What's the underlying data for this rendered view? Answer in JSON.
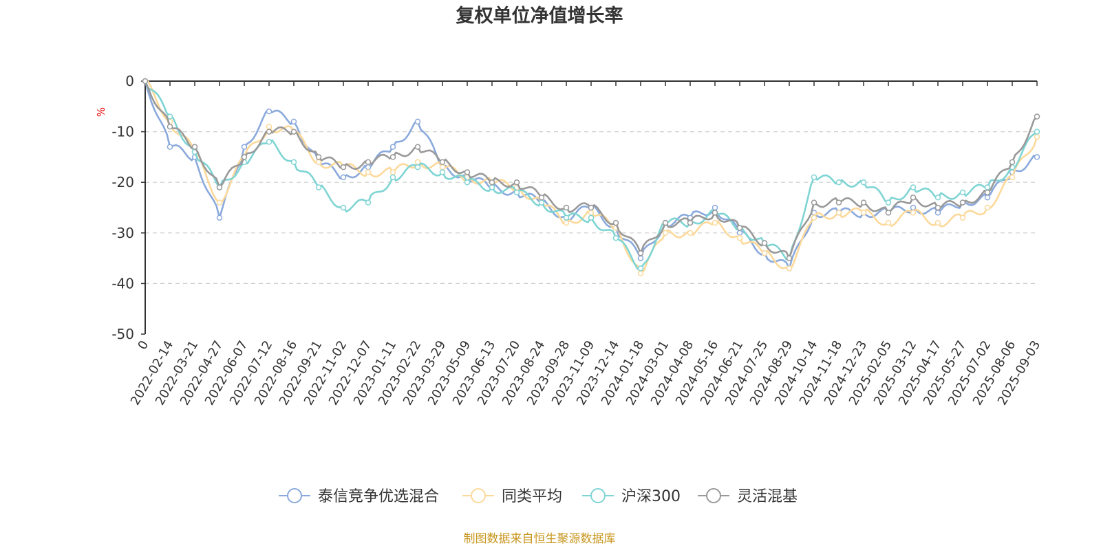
{
  "chart_data": {
    "type": "line",
    "title": "复权单位净值增长率",
    "ylabel": "%",
    "ylim": [
      -50,
      0
    ],
    "yticks": [
      "0",
      "-10",
      "-20",
      "-30",
      "-40",
      "-50"
    ],
    "grid": "horizontal dashed",
    "legend_position": "bottom",
    "x": [
      "0",
      "2022-02-14",
      "2022-03-21",
      "2022-04-27",
      "2022-06-07",
      "2022-07-12",
      "2022-08-16",
      "2022-09-21",
      "2022-11-02",
      "2022-12-07",
      "2023-01-11",
      "2023-02-22",
      "2023-03-29",
      "2023-05-09",
      "2023-06-13",
      "2023-07-20",
      "2023-08-24",
      "2023-09-28",
      "2023-11-09",
      "2023-12-14",
      "2024-01-18",
      "2024-03-01",
      "2024-04-08",
      "2024-05-16",
      "2024-06-21",
      "2024-07-25",
      "2024-08-29",
      "2024-10-14",
      "2024-11-18",
      "2024-12-23",
      "2025-02-05",
      "2025-03-12",
      "2025-04-17",
      "2025-05-27",
      "2025-07-02",
      "2025-08-06",
      "2025-09-03"
    ],
    "series": [
      {
        "name": "泰信竞争优选混合",
        "color": "#8aa9dc",
        "values": [
          0,
          -13,
          -15,
          -27,
          -13,
          -6,
          -8,
          -16,
          -19,
          -17,
          -13,
          -8,
          -17,
          -19,
          -21,
          -22,
          -24,
          -27,
          -25,
          -29,
          -35,
          -28,
          -27,
          -25,
          -30,
          -34,
          -37,
          -26,
          -26,
          -26,
          -26,
          -25,
          -26,
          -24,
          -23,
          -18,
          -15
        ]
      },
      {
        "name": "同类平均",
        "color": "#fcd99a",
        "values": [
          0,
          -8,
          -14,
          -24,
          -15,
          -9,
          -10,
          -16,
          -17,
          -18,
          -18,
          -16,
          -17,
          -19,
          -20,
          -21,
          -24,
          -28,
          -26,
          -29,
          -38,
          -30,
          -30,
          -28,
          -31,
          -34,
          -37,
          -27,
          -26,
          -26,
          -28,
          -26,
          -28,
          -27,
          -25,
          -19,
          -11
        ]
      },
      {
        "name": "沪深300",
        "color": "#7fd4d4",
        "values": [
          0,
          -7,
          -14,
          -21,
          -16,
          -12,
          -16,
          -21,
          -25,
          -24,
          -19,
          -17,
          -18,
          -20,
          -21,
          -22,
          -24,
          -27,
          -27,
          -31,
          -37,
          -28,
          -28,
          -26,
          -29,
          -32,
          -35,
          -19,
          -20,
          -20,
          -24,
          -21,
          -23,
          -22,
          -21,
          -17,
          -10
        ]
      },
      {
        "name": "灵活混基",
        "color": "#999999",
        "values": [
          0,
          -9,
          -13,
          -21,
          -15,
          -10,
          -10,
          -15,
          -17,
          -16,
          -15,
          -13,
          -16,
          -18,
          -20,
          -20,
          -23,
          -25,
          -25,
          -28,
          -34,
          -28,
          -28,
          -26,
          -29,
          -32,
          -35,
          -24,
          -24,
          -24,
          -26,
          -23,
          -25,
          -24,
          -22,
          -16,
          -7
        ]
      }
    ]
  },
  "source": "制图数据来自恒生聚源数据库"
}
